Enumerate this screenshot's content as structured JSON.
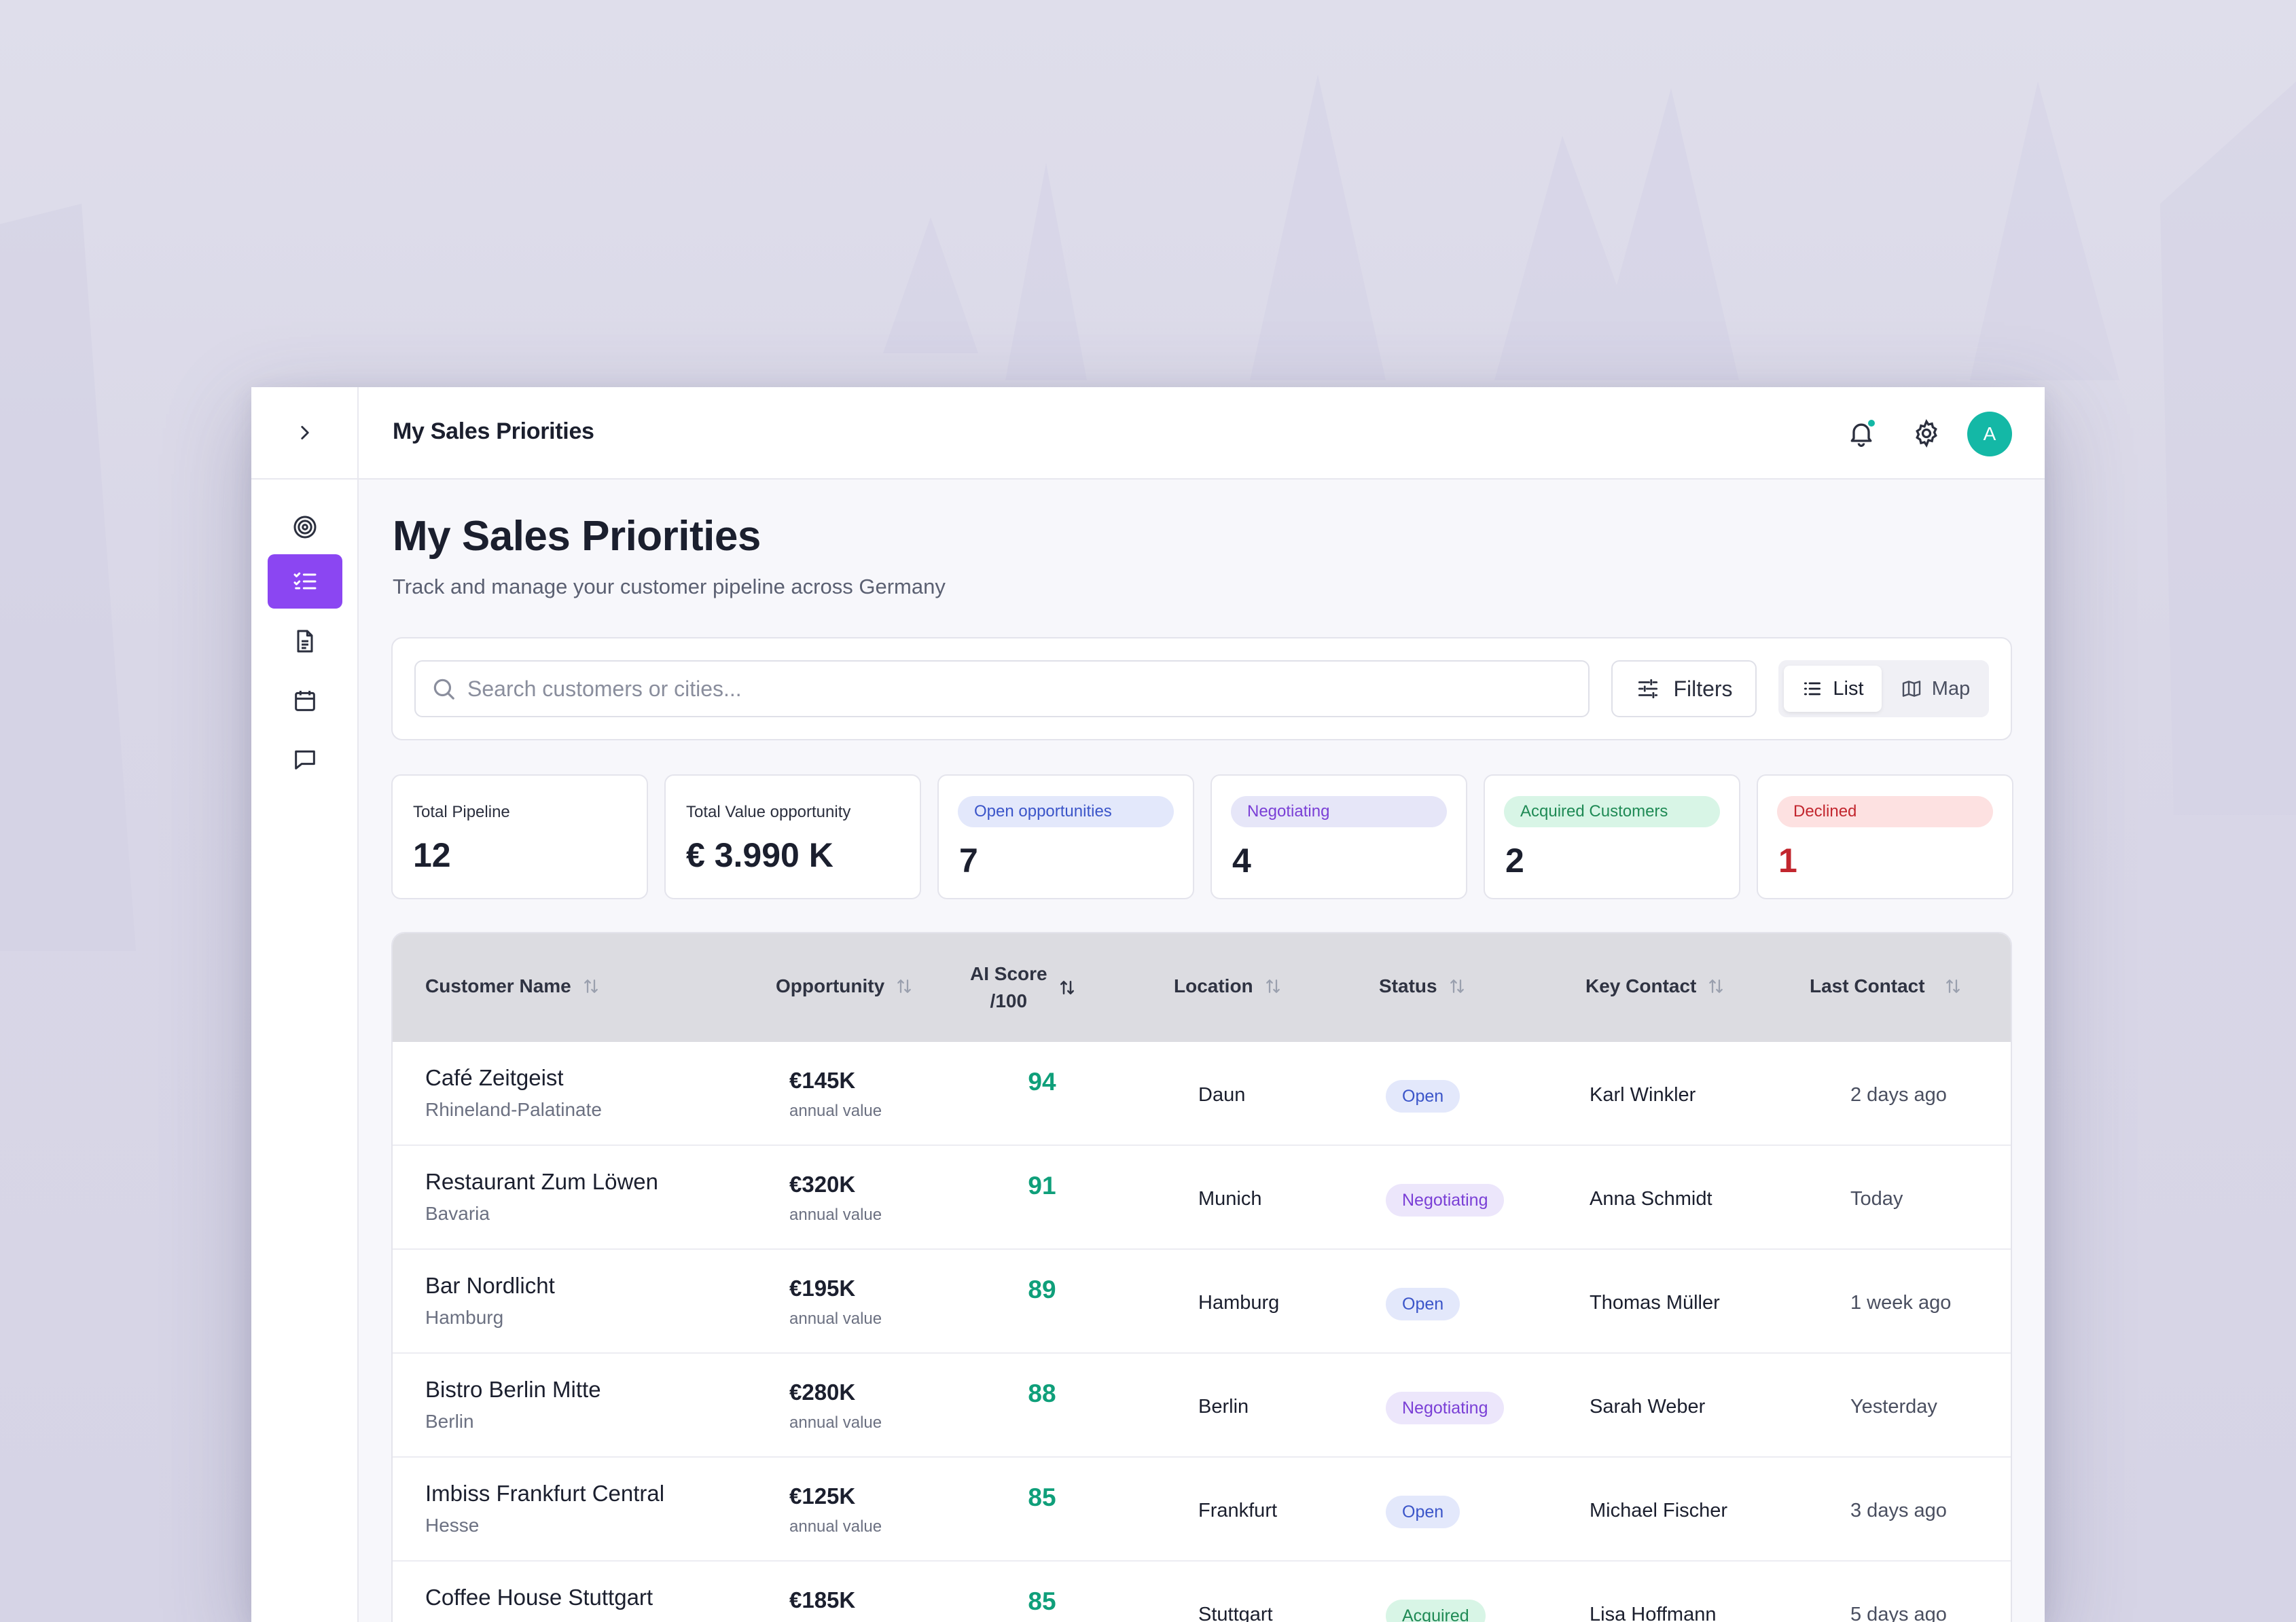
{
  "app": {
    "header_title": "My Sales Priorities",
    "avatar_initial": "A"
  },
  "page": {
    "title": "My Sales Priorities",
    "subtitle": "Track and manage your customer pipeline across Germany"
  },
  "toolbar": {
    "search_placeholder": "Search customers or cities...",
    "filters_label": "Filters",
    "view_list_label": "List",
    "view_map_label": "Map",
    "active_view": "List"
  },
  "sidebar": {
    "items": [
      {
        "icon": "target-icon",
        "active": false
      },
      {
        "icon": "checklist-icon",
        "active": true
      },
      {
        "icon": "document-icon",
        "active": false
      },
      {
        "icon": "calendar-icon",
        "active": false
      },
      {
        "icon": "chat-icon",
        "active": false
      }
    ]
  },
  "stats": [
    {
      "label": "Total Pipeline",
      "value": "12"
    },
    {
      "label": "Total Value opportunity",
      "value": "€ 3.990 K"
    },
    {
      "label": "Open opportunities",
      "value": "7",
      "pill_bg": "#e3e8fb",
      "pill_fg": "#3b55c9"
    },
    {
      "label": "Negotiating",
      "value": "4",
      "pill_bg": "#e6e6f8",
      "pill_fg": "#7a3fd6"
    },
    {
      "label": "Acquired Customers",
      "value": "2",
      "pill_bg": "#d8f5e6",
      "pill_fg": "#1f8a55"
    },
    {
      "label": "Declined",
      "value": "1",
      "pill_bg": "#fde1e1",
      "pill_fg": "#c2262e",
      "value_color": "#c2262e"
    }
  ],
  "table": {
    "columns": {
      "customer": "Customer Name",
      "opportunity": "Opportunity",
      "ai_score_1": "AI Score",
      "ai_score_2": "/100",
      "location": "Location",
      "status": "Status",
      "key_contact": "Key Contact",
      "last_contact": "Last Contact"
    },
    "rows": [
      {
        "name": "Café Zeitgeist",
        "region": "Rhineland-Palatinate",
        "opportunity": "€145K",
        "opp_sub": "annual value",
        "score": "94",
        "location": "Daun",
        "status": "Open",
        "contact": "Karl Winkler",
        "last": "2 days ago"
      },
      {
        "name": "Restaurant Zum Löwen",
        "region": "Bavaria",
        "opportunity": "€320K",
        "opp_sub": "annual value",
        "score": "91",
        "location": "Munich",
        "status": "Negotiating",
        "contact": "Anna Schmidt",
        "last": "Today"
      },
      {
        "name": "Bar Nordlicht",
        "region": "Hamburg",
        "opportunity": "€195K",
        "opp_sub": "annual value",
        "score": "89",
        "location": "Hamburg",
        "status": "Open",
        "contact": "Thomas Müller",
        "last": "1 week ago"
      },
      {
        "name": "Bistro Berlin Mitte",
        "region": "Berlin",
        "opportunity": "€280K",
        "opp_sub": "annual value",
        "score": "88",
        "location": "Berlin",
        "status": "Negotiating",
        "contact": "Sarah Weber",
        "last": "Yesterday"
      },
      {
        "name": "Imbiss Frankfurt Central",
        "region": "Hesse",
        "opportunity": "€125K",
        "opp_sub": "annual value",
        "score": "85",
        "location": "Frankfurt",
        "status": "Open",
        "contact": "Michael Fischer",
        "last": "3 days ago"
      },
      {
        "name": "Coffee House Stuttgart",
        "region": "",
        "opportunity": "€185K",
        "opp_sub": "",
        "score": "85",
        "location": "Stuttgart",
        "status": "Acquired",
        "contact": "Lisa Hoffmann",
        "last": "5 days ago"
      }
    ]
  },
  "status_colors": {
    "Open": {
      "bg": "#e3e8fb",
      "fg": "#3b55c9"
    },
    "Negotiating": {
      "bg": "#ece6fb",
      "fg": "#7a3fd6"
    },
    "Acquired": {
      "bg": "#d8f5e6",
      "fg": "#1f8a55"
    }
  },
  "accent": "#8b46f2",
  "score_color": "#0f9f7a"
}
